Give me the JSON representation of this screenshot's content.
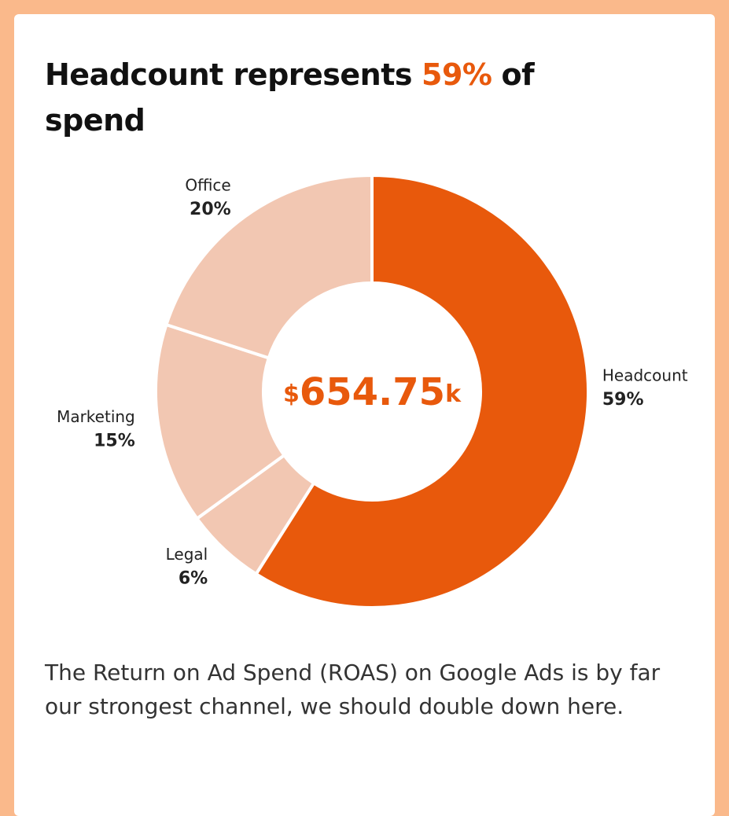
{
  "chart_data": {
    "type": "pie",
    "title": [
      {
        "text": "Headcount represents"
      },
      {
        "text": "59%",
        "color": "#e8590c"
      },
      {
        "text": "of spend"
      }
    ],
    "categories": [
      "Headcount",
      "Legal",
      "Marketing",
      "Office"
    ],
    "values": [
      59,
      6,
      15,
      20
    ],
    "value_labels": [
      "59%",
      "6%",
      "15%",
      "20%"
    ],
    "colors": [
      "#e8590c",
      "#f2c7b2",
      "#f2c7b2",
      "#f2c7b2"
    ],
    "total": {
      "prefix": "$",
      "value": 654.75,
      "suffix": "k",
      "color": "#e8590c"
    },
    "note": "The Return on Ad Spend (ROAS) on Google Ads is by far our strongest channel, we should double down here."
  }
}
